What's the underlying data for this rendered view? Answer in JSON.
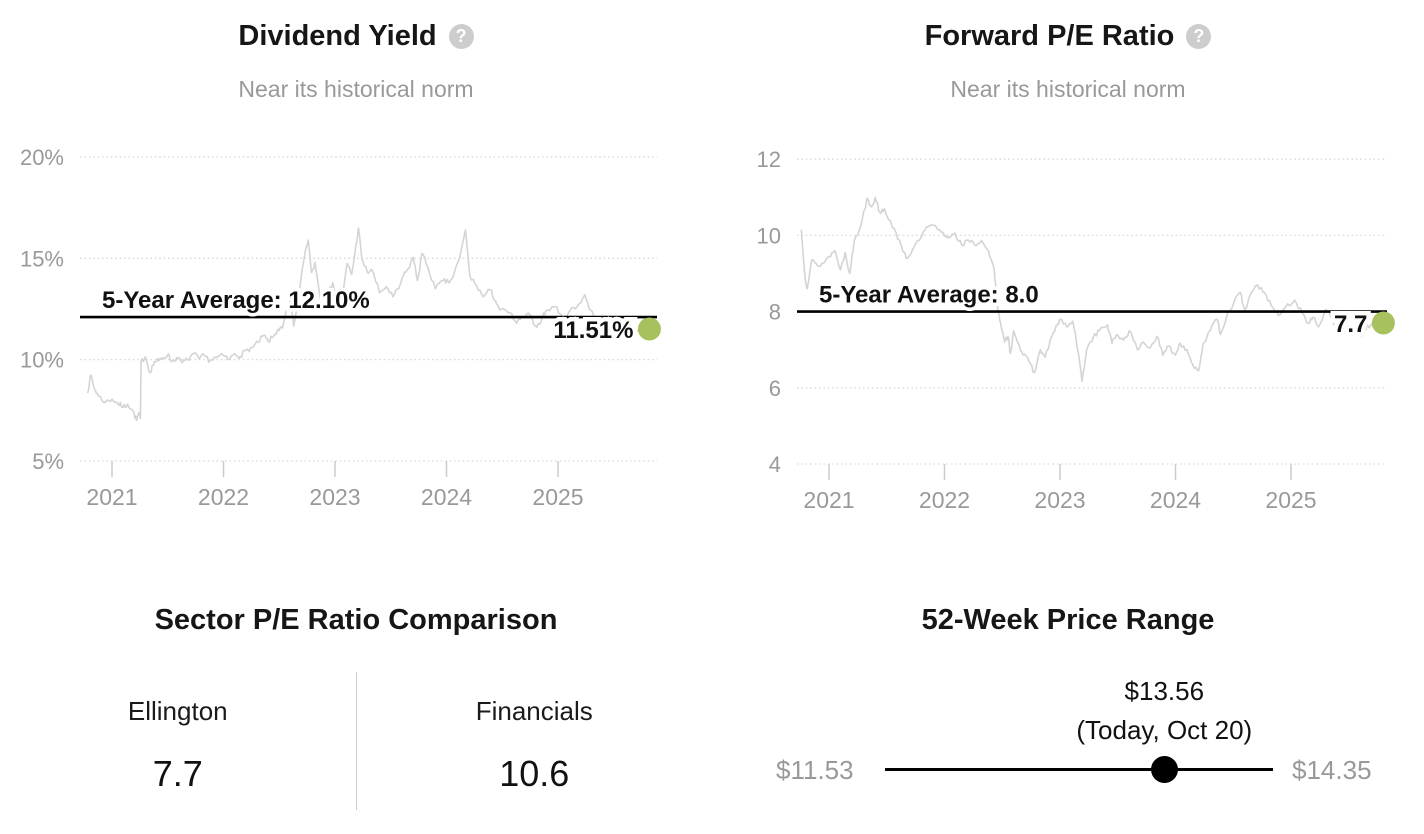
{
  "icons": {
    "help_glyph": "?"
  },
  "colors": {
    "highlight_dot": "#a6c15e",
    "average_line": "#000000",
    "series_line": "#d4d4d4",
    "grid": "#d9d9d9",
    "tick": "#cccccc",
    "muted_text": "#999999"
  },
  "panels": {
    "dividend_yield": {
      "title": "Dividend Yield",
      "subtitle": "Near its historical norm"
    },
    "forward_pe": {
      "title": "Forward P/E Ratio",
      "subtitle": "Near its historical norm"
    },
    "sector_pe": {
      "title": "Sector P/E Ratio Comparison",
      "left_label": "Ellington",
      "left_value": "7.7",
      "right_label": "Financials",
      "right_value": "10.6"
    },
    "price_range": {
      "title": "52-Week Price Range",
      "low_label": "$11.53",
      "high_label": "$14.35",
      "current_label": "$13.56",
      "current_sublabel": "(Today, Oct 20)",
      "low": 11.53,
      "high": 14.35,
      "current": 13.56
    }
  },
  "chart_data": [
    {
      "type": "line",
      "title": "Dividend Yield",
      "subtitle": "Near its historical norm",
      "legend": "none",
      "grid": "dotted-horizontal",
      "y_ticks": [
        {
          "label": "20%",
          "value": 20
        },
        {
          "label": "15%",
          "value": 15
        },
        {
          "label": "10%",
          "value": 10
        },
        {
          "label": "5%",
          "value": 5
        }
      ],
      "x_ticks": [
        {
          "label": "2021",
          "value": 2021
        },
        {
          "label": "2022",
          "value": 2022
        },
        {
          "label": "2023",
          "value": 2023
        },
        {
          "label": "2024",
          "value": 2024
        },
        {
          "label": "2025",
          "value": 2025
        }
      ],
      "xlim": [
        2020.72,
        2025.9
      ],
      "ylim": [
        3.8,
        21.3
      ],
      "average": {
        "label": "5-Year Average: 12.10%",
        "value": 12.1
      },
      "latest": {
        "label": "11.51%",
        "value": 11.51,
        "x": 2025.82
      },
      "series": [
        [
          2020.78,
          8.35
        ],
        [
          2020.81,
          9.24
        ],
        [
          2020.84,
          8.6
        ],
        [
          2020.88,
          8.2
        ],
        [
          2020.94,
          7.9
        ],
        [
          2021.0,
          8.05
        ],
        [
          2021.05,
          7.85
        ],
        [
          2021.1,
          7.66
        ],
        [
          2021.14,
          7.8
        ],
        [
          2021.19,
          7.45
        ],
        [
          2021.22,
          7.0
        ],
        [
          2021.24,
          7.35
        ],
        [
          2021.255,
          7.1
        ],
        [
          2021.26,
          9.9
        ],
        [
          2021.3,
          10.15
        ],
        [
          2021.34,
          9.35
        ],
        [
          2021.38,
          9.9
        ],
        [
          2021.42,
          9.95
        ],
        [
          2021.46,
          10.1
        ],
        [
          2021.5,
          10.25
        ],
        [
          2021.54,
          9.9
        ],
        [
          2021.58,
          10.1
        ],
        [
          2021.63,
          9.85
        ],
        [
          2021.68,
          10.0
        ],
        [
          2021.73,
          10.3
        ],
        [
          2021.78,
          10.05
        ],
        [
          2021.83,
          10.2
        ],
        [
          2021.88,
          9.95
        ],
        [
          2021.93,
          10.1
        ],
        [
          2022.0,
          10.2
        ],
        [
          2022.05,
          10.0
        ],
        [
          2022.1,
          10.3
        ],
        [
          2022.15,
          10.15
        ],
        [
          2022.2,
          10.45
        ],
        [
          2022.26,
          10.6
        ],
        [
          2022.31,
          10.85
        ],
        [
          2022.36,
          11.2
        ],
        [
          2022.4,
          10.9
        ],
        [
          2022.45,
          11.15
        ],
        [
          2022.49,
          11.5
        ],
        [
          2022.53,
          11.55
        ],
        [
          2022.57,
          12.45
        ],
        [
          2022.6,
          13.0
        ],
        [
          2022.63,
          11.65
        ],
        [
          2022.68,
          13.2
        ],
        [
          2022.7,
          14.25
        ],
        [
          2022.74,
          15.55
        ],
        [
          2022.76,
          15.9
        ],
        [
          2022.79,
          14.3
        ],
        [
          2022.82,
          14.8
        ],
        [
          2022.88,
          12.6
        ],
        [
          2022.93,
          13.1
        ],
        [
          2022.98,
          13.8
        ],
        [
          2023.03,
          12.9
        ],
        [
          2023.08,
          13.6
        ],
        [
          2023.11,
          14.75
        ],
        [
          2023.15,
          14.2
        ],
        [
          2023.18,
          15.3
        ],
        [
          2023.21,
          16.5
        ],
        [
          2023.24,
          15.0
        ],
        [
          2023.29,
          14.3
        ],
        [
          2023.33,
          14.45
        ],
        [
          2023.4,
          13.3
        ],
        [
          2023.46,
          13.6
        ],
        [
          2023.52,
          13.1
        ],
        [
          2023.57,
          13.5
        ],
        [
          2023.61,
          14.1
        ],
        [
          2023.66,
          14.5
        ],
        [
          2023.7,
          15.05
        ],
        [
          2023.74,
          13.9
        ],
        [
          2023.78,
          15.25
        ],
        [
          2023.83,
          14.6
        ],
        [
          2023.9,
          13.5
        ],
        [
          2023.97,
          13.9
        ],
        [
          2024.02,
          13.8
        ],
        [
          2024.06,
          14.1
        ],
        [
          2024.12,
          15.05
        ],
        [
          2024.17,
          16.4
        ],
        [
          2024.21,
          14.1
        ],
        [
          2024.27,
          13.65
        ],
        [
          2024.33,
          13.1
        ],
        [
          2024.39,
          13.45
        ],
        [
          2024.44,
          12.9
        ],
        [
          2024.48,
          12.45
        ],
        [
          2024.57,
          12.3
        ],
        [
          2024.63,
          11.8
        ],
        [
          2024.69,
          12.1
        ],
        [
          2024.75,
          12.2
        ],
        [
          2024.81,
          11.6
        ],
        [
          2024.86,
          12.1
        ],
        [
          2024.9,
          12.45
        ],
        [
          2024.99,
          12.6
        ],
        [
          2025.04,
          11.95
        ],
        [
          2025.11,
          12.45
        ],
        [
          2025.17,
          12.6
        ],
        [
          2025.24,
          13.2
        ],
        [
          2025.29,
          12.45
        ],
        [
          2025.35,
          11.95
        ],
        [
          2025.4,
          12.1
        ],
        [
          2025.47,
          11.35
        ],
        [
          2025.53,
          11.8
        ],
        [
          2025.58,
          11.45
        ],
        [
          2025.65,
          11.7
        ],
        [
          2025.72,
          11.4
        ],
        [
          2025.78,
          11.6
        ],
        [
          2025.82,
          11.51
        ]
      ]
    },
    {
      "type": "line",
      "title": "Forward P/E Ratio",
      "subtitle": "Near its historical norm",
      "legend": "none",
      "grid": "dotted-horizontal",
      "y_ticks": [
        {
          "label": "12",
          "value": 12
        },
        {
          "label": "10",
          "value": 10
        },
        {
          "label": "8",
          "value": 8
        },
        {
          "label": "6",
          "value": 6
        },
        {
          "label": "4",
          "value": 4
        }
      ],
      "x_ticks": [
        {
          "label": "2021",
          "value": 2021
        },
        {
          "label": "2022",
          "value": 2022
        },
        {
          "label": "2023",
          "value": 2023
        },
        {
          "label": "2024",
          "value": 2024
        },
        {
          "label": "2025",
          "value": 2025
        }
      ],
      "xlim": [
        2020.7,
        2025.9
      ],
      "ylim": [
        3.2,
        12.8
      ],
      "average": {
        "label": "5-Year Average: 8.0",
        "value": 8.0
      },
      "latest": {
        "label": "7.7",
        "value": 7.7,
        "x": 2025.8
      },
      "series": [
        [
          2020.76,
          10.15
        ],
        [
          2020.79,
          9.0
        ],
        [
          2020.81,
          8.6
        ],
        [
          2020.85,
          9.35
        ],
        [
          2020.9,
          9.2
        ],
        [
          2020.95,
          9.27
        ],
        [
          2021.0,
          9.45
        ],
        [
          2021.05,
          9.6
        ],
        [
          2021.1,
          9.1
        ],
        [
          2021.14,
          9.55
        ],
        [
          2021.18,
          9.0
        ],
        [
          2021.22,
          9.87
        ],
        [
          2021.27,
          10.2
        ],
        [
          2021.33,
          10.98
        ],
        [
          2021.37,
          10.75
        ],
        [
          2021.4,
          11.0
        ],
        [
          2021.44,
          10.6
        ],
        [
          2021.48,
          10.7
        ],
        [
          2021.55,
          10.2
        ],
        [
          2021.61,
          9.87
        ],
        [
          2021.67,
          9.4
        ],
        [
          2021.72,
          9.6
        ],
        [
          2021.78,
          9.87
        ],
        [
          2021.83,
          10.14
        ],
        [
          2021.89,
          10.27
        ],
        [
          2021.95,
          10.14
        ],
        [
          2022.0,
          10.0
        ],
        [
          2022.04,
          9.96
        ],
        [
          2022.09,
          10.06
        ],
        [
          2022.15,
          9.75
        ],
        [
          2022.21,
          9.87
        ],
        [
          2022.26,
          9.75
        ],
        [
          2022.32,
          9.87
        ],
        [
          2022.38,
          9.6
        ],
        [
          2022.43,
          9.1
        ],
        [
          2022.45,
          8.4
        ],
        [
          2022.47,
          7.95
        ],
        [
          2022.49,
          7.6
        ],
        [
          2022.52,
          7.2
        ],
        [
          2022.55,
          7.35
        ],
        [
          2022.57,
          6.9
        ],
        [
          2022.6,
          7.5
        ],
        [
          2022.64,
          7.17
        ],
        [
          2022.68,
          6.86
        ],
        [
          2022.73,
          6.7
        ],
        [
          2022.78,
          6.4
        ],
        [
          2022.83,
          7.0
        ],
        [
          2022.87,
          6.8
        ],
        [
          2022.93,
          7.35
        ],
        [
          2022.98,
          7.65
        ],
        [
          2023.0,
          7.8
        ],
        [
          2023.06,
          7.6
        ],
        [
          2023.11,
          7.75
        ],
        [
          2023.16,
          6.9
        ],
        [
          2023.19,
          6.17
        ],
        [
          2023.23,
          7.0
        ],
        [
          2023.29,
          7.35
        ],
        [
          2023.34,
          7.5
        ],
        [
          2023.41,
          7.65
        ],
        [
          2023.45,
          7.17
        ],
        [
          2023.49,
          7.4
        ],
        [
          2023.55,
          7.25
        ],
        [
          2023.6,
          7.5
        ],
        [
          2023.67,
          7.0
        ],
        [
          2023.72,
          7.2
        ],
        [
          2023.78,
          7.05
        ],
        [
          2023.84,
          7.35
        ],
        [
          2023.89,
          6.85
        ],
        [
          2023.94,
          7.1
        ],
        [
          2024.0,
          6.86
        ],
        [
          2024.04,
          7.17
        ],
        [
          2024.1,
          7.0
        ],
        [
          2024.15,
          6.6
        ],
        [
          2024.2,
          6.45
        ],
        [
          2024.24,
          7.17
        ],
        [
          2024.3,
          7.5
        ],
        [
          2024.36,
          7.8
        ],
        [
          2024.39,
          7.4
        ],
        [
          2024.45,
          7.95
        ],
        [
          2024.5,
          8.2
        ],
        [
          2024.56,
          8.5
        ],
        [
          2024.6,
          8.05
        ],
        [
          2024.67,
          8.55
        ],
        [
          2024.71,
          8.7
        ],
        [
          2024.77,
          8.5
        ],
        [
          2024.83,
          8.15
        ],
        [
          2024.89,
          7.9
        ],
        [
          2024.95,
          8.1
        ],
        [
          2025.03,
          8.3
        ],
        [
          2025.1,
          7.95
        ],
        [
          2025.15,
          7.7
        ],
        [
          2025.19,
          7.85
        ],
        [
          2025.24,
          7.6
        ],
        [
          2025.3,
          8.05
        ],
        [
          2025.36,
          7.8
        ],
        [
          2025.41,
          7.4
        ],
        [
          2025.45,
          7.65
        ],
        [
          2025.51,
          7.5
        ],
        [
          2025.57,
          7.67
        ],
        [
          2025.61,
          7.35
        ],
        [
          2025.66,
          7.65
        ],
        [
          2025.73,
          7.6
        ],
        [
          2025.8,
          7.7
        ]
      ]
    }
  ]
}
